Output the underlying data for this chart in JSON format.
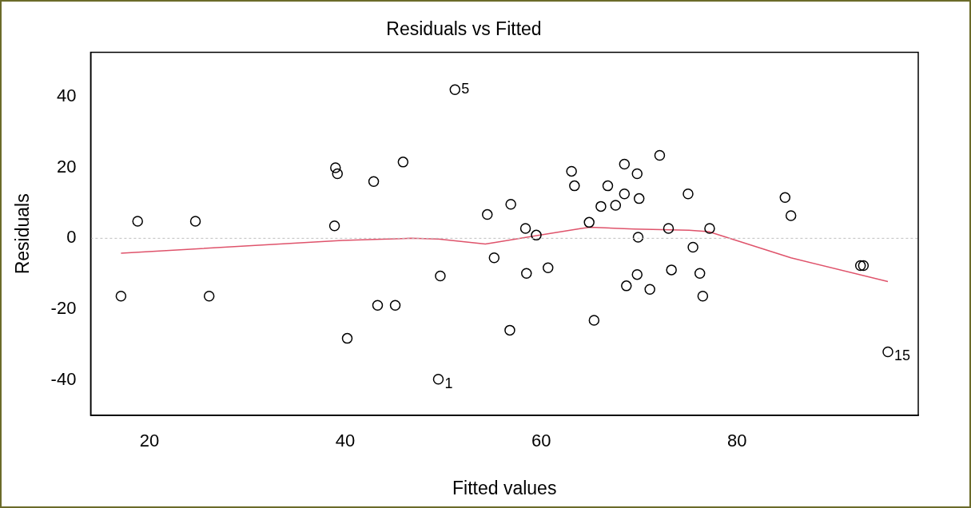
{
  "chart_data": {
    "type": "scatter",
    "title": "Residuals vs Fitted",
    "xlabel": "Fitted values",
    "ylabel": "Residuals",
    "xlim": [
      14,
      98.5
    ],
    "ylim": [
      -49.9,
      52.4
    ],
    "xticks": [
      20,
      40,
      60,
      80
    ],
    "yticks": [
      -40,
      -20,
      0,
      20,
      40
    ],
    "grid": false,
    "legend": false,
    "marker": "circle",
    "series": [
      {
        "type": "scatter",
        "color": "#000000",
        "x": [
          17.1,
          18.8,
          24.7,
          26.1,
          39.0,
          39.2,
          38.9,
          40.2,
          42.9,
          45.9,
          43.3,
          45.1,
          49.5,
          49.7,
          51.2,
          54.5,
          55.2,
          56.9,
          56.8,
          58.4,
          58.5,
          59.5,
          60.7,
          63.1,
          63.4,
          64.9,
          65.4,
          66.1,
          66.8,
          67.6,
          68.5,
          68.5,
          68.7,
          69.8,
          70.0,
          69.9,
          69.8,
          71.1,
          72.1,
          73.0,
          73.3,
          75.0,
          75.5,
          76.2,
          76.5,
          77.2,
          84.9,
          85.5,
          92.6,
          92.9,
          95.4
        ],
        "values": [
          -16.3,
          4.8,
          4.8,
          -16.3,
          19.9,
          18.2,
          3.5,
          -28.2,
          16.0,
          21.5,
          -18.9,
          -18.9,
          -39.7,
          -10.6,
          41.9,
          6.7,
          -5.5,
          9.6,
          -25.9,
          2.8,
          -9.9,
          0.9,
          -8.3,
          18.9,
          14.8,
          4.5,
          -23.1,
          9.0,
          14.8,
          9.3,
          20.9,
          12.5,
          -13.4,
          18.2,
          11.2,
          0.3,
          -10.2,
          -14.4,
          23.4,
          2.8,
          -8.9,
          12.5,
          -2.5,
          -9.9,
          -16.3,
          2.8,
          11.5,
          6.4,
          -7.7,
          -7.7,
          -32.0
        ]
      },
      {
        "type": "line",
        "color": "#df536b",
        "marker": "none",
        "line_style": "solid",
        "x": [
          17.1,
          39.7,
          46.7,
          49.5,
          54.3,
          55.7,
          59.4,
          64.1,
          65.0,
          69.5,
          75.1,
          77.1,
          85.5,
          95.4
        ],
        "values": [
          -4.2,
          -0.6,
          0,
          -0.2,
          -1.6,
          -1.0,
          0.7,
          2.8,
          3.1,
          2.6,
          2.3,
          1.9,
          -5.5,
          -12.2
        ]
      }
    ],
    "ref_lines": [
      {
        "axis": "y",
        "value": 0,
        "color": "#bebebe",
        "line_style": "dotted"
      }
    ],
    "annotations": [
      {
        "text": "5",
        "x": 51.2,
        "y": 41.9
      },
      {
        "text": "1",
        "x": 49.5,
        "y": -39.7
      },
      {
        "text": "15",
        "x": 95.4,
        "y": -32.0
      }
    ]
  }
}
